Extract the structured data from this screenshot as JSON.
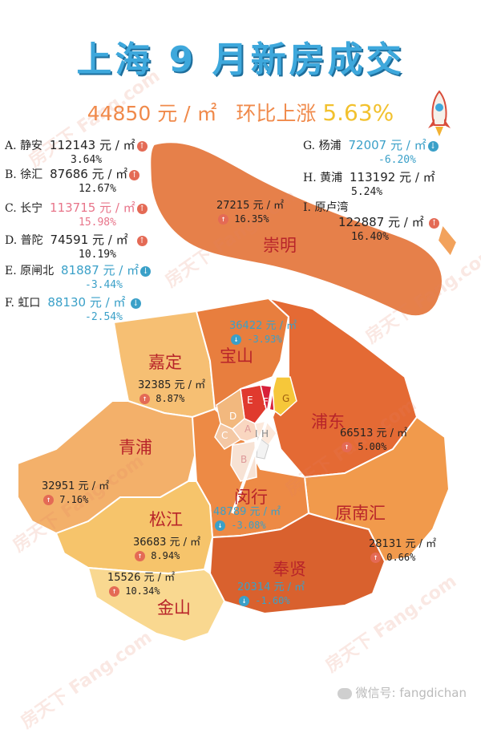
{
  "title": "上海 9 月新房成交",
  "subtitle": {
    "avg": "44850 元 / ㎡",
    "label": "环比上涨",
    "pct": "5.63%"
  },
  "colors": {
    "title": "#3ea8dc",
    "up": "#e46a55",
    "down": "#3aa0c8",
    "region_text": "#b8242a"
  },
  "districts": [
    {
      "key": "A",
      "name": "静安",
      "value": "112143 元 / ㎡",
      "change": "3.64%",
      "trend": "up",
      "style": "normal"
    },
    {
      "key": "B",
      "name": "徐汇",
      "value": "87686 元 / ㎡",
      "change": "12.67%",
      "trend": "up",
      "style": "normal"
    },
    {
      "key": "C",
      "name": "长宁",
      "value": "113715 元 / ㎡",
      "change": "15.98%",
      "trend": "up",
      "style": "pink"
    },
    {
      "key": "D",
      "name": "普陀",
      "value": "74591 元 / ㎡",
      "change": "10.19%",
      "trend": "up",
      "style": "normal"
    },
    {
      "key": "E",
      "name": "原闸北",
      "value": "81887 元 / ㎡",
      "change": "-3.44%",
      "trend": "down",
      "style": "down"
    },
    {
      "key": "F",
      "name": "虹口",
      "value": "88130 元 / ㎡",
      "change": "-2.54%",
      "trend": "down",
      "style": "down"
    },
    {
      "key": "G",
      "name": "杨浦",
      "value": "72007 元 / ㎡",
      "change": "-6.20%",
      "trend": "down",
      "style": "down"
    },
    {
      "key": "H",
      "name": "黄浦",
      "value": "113192 元 / ㎡",
      "change": "5.24%",
      "trend": "up",
      "style": "normal"
    },
    {
      "key": "I",
      "name": "原卢湾",
      "value": "122887 元 / ㎡",
      "change": "16.40%",
      "trend": "up",
      "style": "normal"
    }
  ],
  "regions": [
    {
      "name": "崇明",
      "value": "27215 元 / ㎡",
      "change": "16.35%",
      "trend": "up"
    },
    {
      "name": "宝山",
      "value": "36422 元 / ㎡",
      "change": "-3.93%",
      "trend": "down"
    },
    {
      "name": "嘉定",
      "value": "32385 元 / ㎡",
      "change": "8.87%",
      "trend": "up"
    },
    {
      "name": "浦东",
      "value": "66513 元 / ㎡",
      "change": "5.00%",
      "trend": "up"
    },
    {
      "name": "青浦",
      "value": "32951 元 / ㎡",
      "change": "7.16%",
      "trend": "up"
    },
    {
      "name": "闵行",
      "value": "48789 元 / ㎡",
      "change": "-3.08%",
      "trend": "down"
    },
    {
      "name": "松江",
      "value": "36683 元 / ㎡",
      "change": "8.94%",
      "trend": "up"
    },
    {
      "name": "原南汇",
      "value": "28131 元 / ㎡",
      "change": "0.66%",
      "trend": "up"
    },
    {
      "name": "奉贤",
      "value": "20314 元 / ㎡",
      "change": "-1.60%",
      "trend": "down"
    },
    {
      "name": "金山",
      "value": "15526 元 / ㎡",
      "change": "10.34%",
      "trend": "up"
    }
  ],
  "map_letters": [
    "E",
    "F",
    "G",
    "D",
    "C",
    "A",
    "B",
    "I",
    "H"
  ],
  "watermark": "房天下 Fang.com",
  "footer": "微信号: fangdichan"
}
